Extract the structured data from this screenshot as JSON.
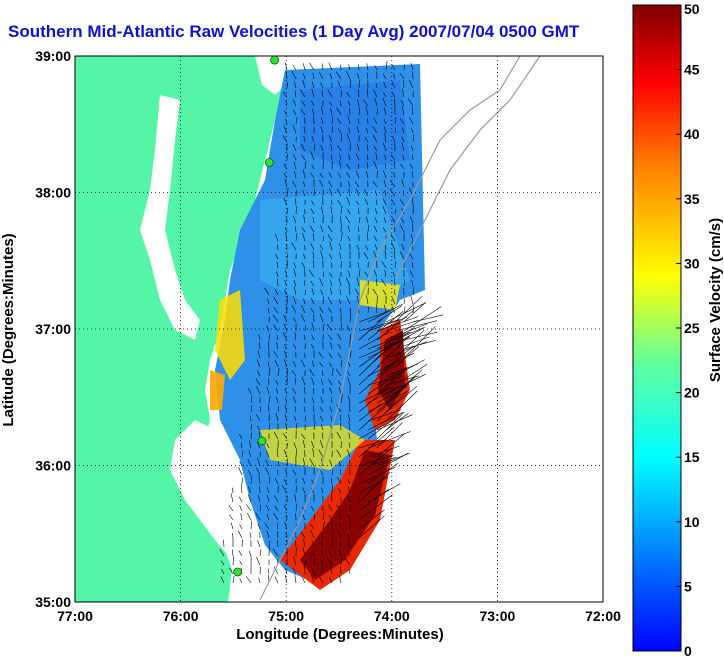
{
  "title": "Southern Mid-Atlantic Raw Velocities (1 Day Avg) 2007/07/04 0500 GMT",
  "x_axis": {
    "label": "Longitude (Degrees:Minutes)",
    "ticks": [
      "77:00",
      "76:00",
      "75:00",
      "74:00",
      "73:00",
      "72:00"
    ],
    "range": [
      -77,
      -72
    ]
  },
  "y_axis": {
    "label": "Latitude (Degrees:Minutes)",
    "ticks": [
      "35:00",
      "36:00",
      "37:00",
      "38:00",
      "39:00"
    ],
    "range": [
      35,
      39
    ]
  },
  "colorbar": {
    "label": "Surface Velocity (cm/s)",
    "ticks": [
      "0",
      "5",
      "10",
      "15",
      "20",
      "25",
      "30",
      "35",
      "40",
      "45",
      "50"
    ],
    "range": [
      0,
      50
    ]
  },
  "colors": {
    "land": "#55f5a8",
    "title": "#1010d0",
    "grid": "#000000",
    "bathymetry": "#999999",
    "station": "#33dd33"
  },
  "grid": "dotted",
  "stations": [
    {
      "lon": -75.11,
      "lat": 38.97
    },
    {
      "lon": -75.16,
      "lat": 38.22
    },
    {
      "lon": -75.23,
      "lat": 36.18
    },
    {
      "lon": -75.46,
      "lat": 35.22
    }
  ]
}
